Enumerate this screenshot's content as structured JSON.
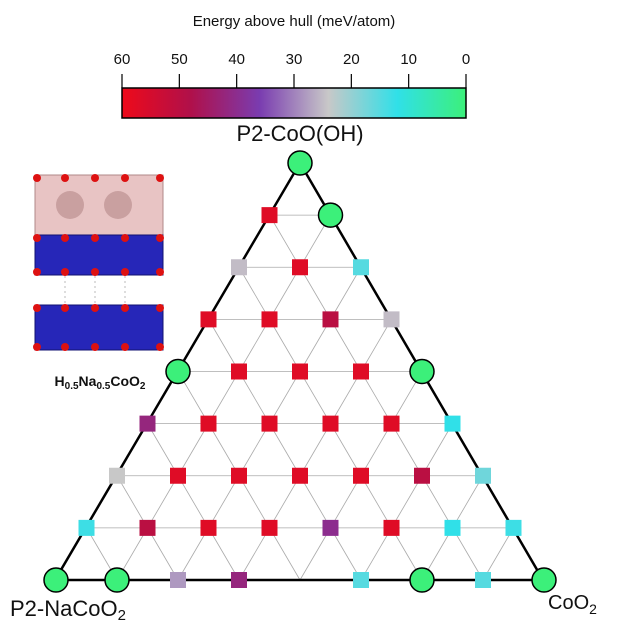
{
  "chart_data": {
    "type": "ternary",
    "colorbar_label": "Energy above hull (meV/atom)",
    "clim": [
      60,
      0
    ],
    "cticks": [
      60,
      50,
      40,
      30,
      20,
      10,
      0
    ],
    "colormap": [
      "#ee0a1a",
      "#b0104a",
      "#7a3cb0",
      "#c8c8c8",
      "#30e0e8",
      "#3cf07a"
    ],
    "vertex_labels": {
      "top": [
        "P2-CoO(OH)"
      ],
      "left": [
        "P2-NaCoO",
        "2"
      ],
      "right": [
        "CoO",
        "2"
      ]
    },
    "structure_label": [
      "H",
      "0.5",
      "Na",
      "0.5",
      "CoO",
      "2"
    ],
    "rows": [
      [
        0
      ],
      [
        57,
        0
      ],
      [
        25,
        57,
        15
      ],
      [
        57,
        57,
        50,
        25
      ],
      [
        0,
        57,
        57,
        57,
        0
      ],
      [
        42,
        57,
        57,
        57,
        57,
        12
      ],
      [
        24,
        57,
        57,
        57,
        57,
        50,
        17
      ],
      [
        13,
        50,
        57,
        57,
        40,
        57,
        12,
        13
      ],
      [
        0,
        0,
        28,
        42,
        null,
        15,
        0,
        15,
        0
      ]
    ]
  }
}
